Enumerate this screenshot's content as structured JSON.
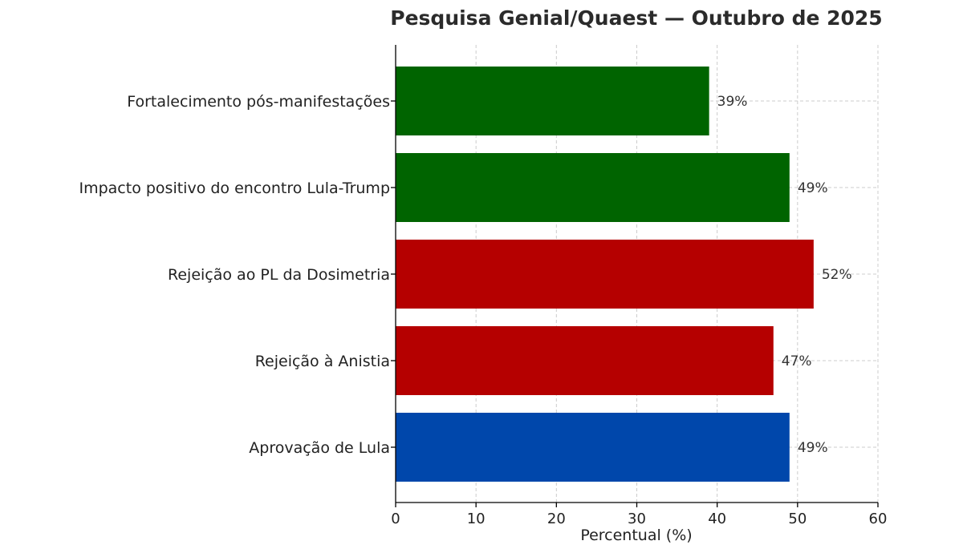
{
  "chart_data": {
    "type": "bar",
    "orientation": "horizontal",
    "title": "Pesquisa Genial/Quaest — Outubro de 2025",
    "xlabel": "Percentual (%)",
    "ylabel": "",
    "xlim": [
      0,
      60
    ],
    "xticks": [
      0,
      10,
      20,
      30,
      40,
      50,
      60
    ],
    "grid": true,
    "categories": [
      "Fortalecimento pós-manifestações",
      "Impacto positivo do encontro Lula-Trump",
      "Rejeição ao PL da Dosimetria",
      "Rejeição à Anistia",
      "Aprovação de Lula"
    ],
    "values": [
      39,
      49,
      52,
      47,
      49
    ],
    "data_labels": [
      "39%",
      "49%",
      "52%",
      "47%",
      "49%"
    ],
    "colors": [
      "#006400",
      "#006400",
      "#b50000",
      "#b50000",
      "#0047ab"
    ]
  }
}
